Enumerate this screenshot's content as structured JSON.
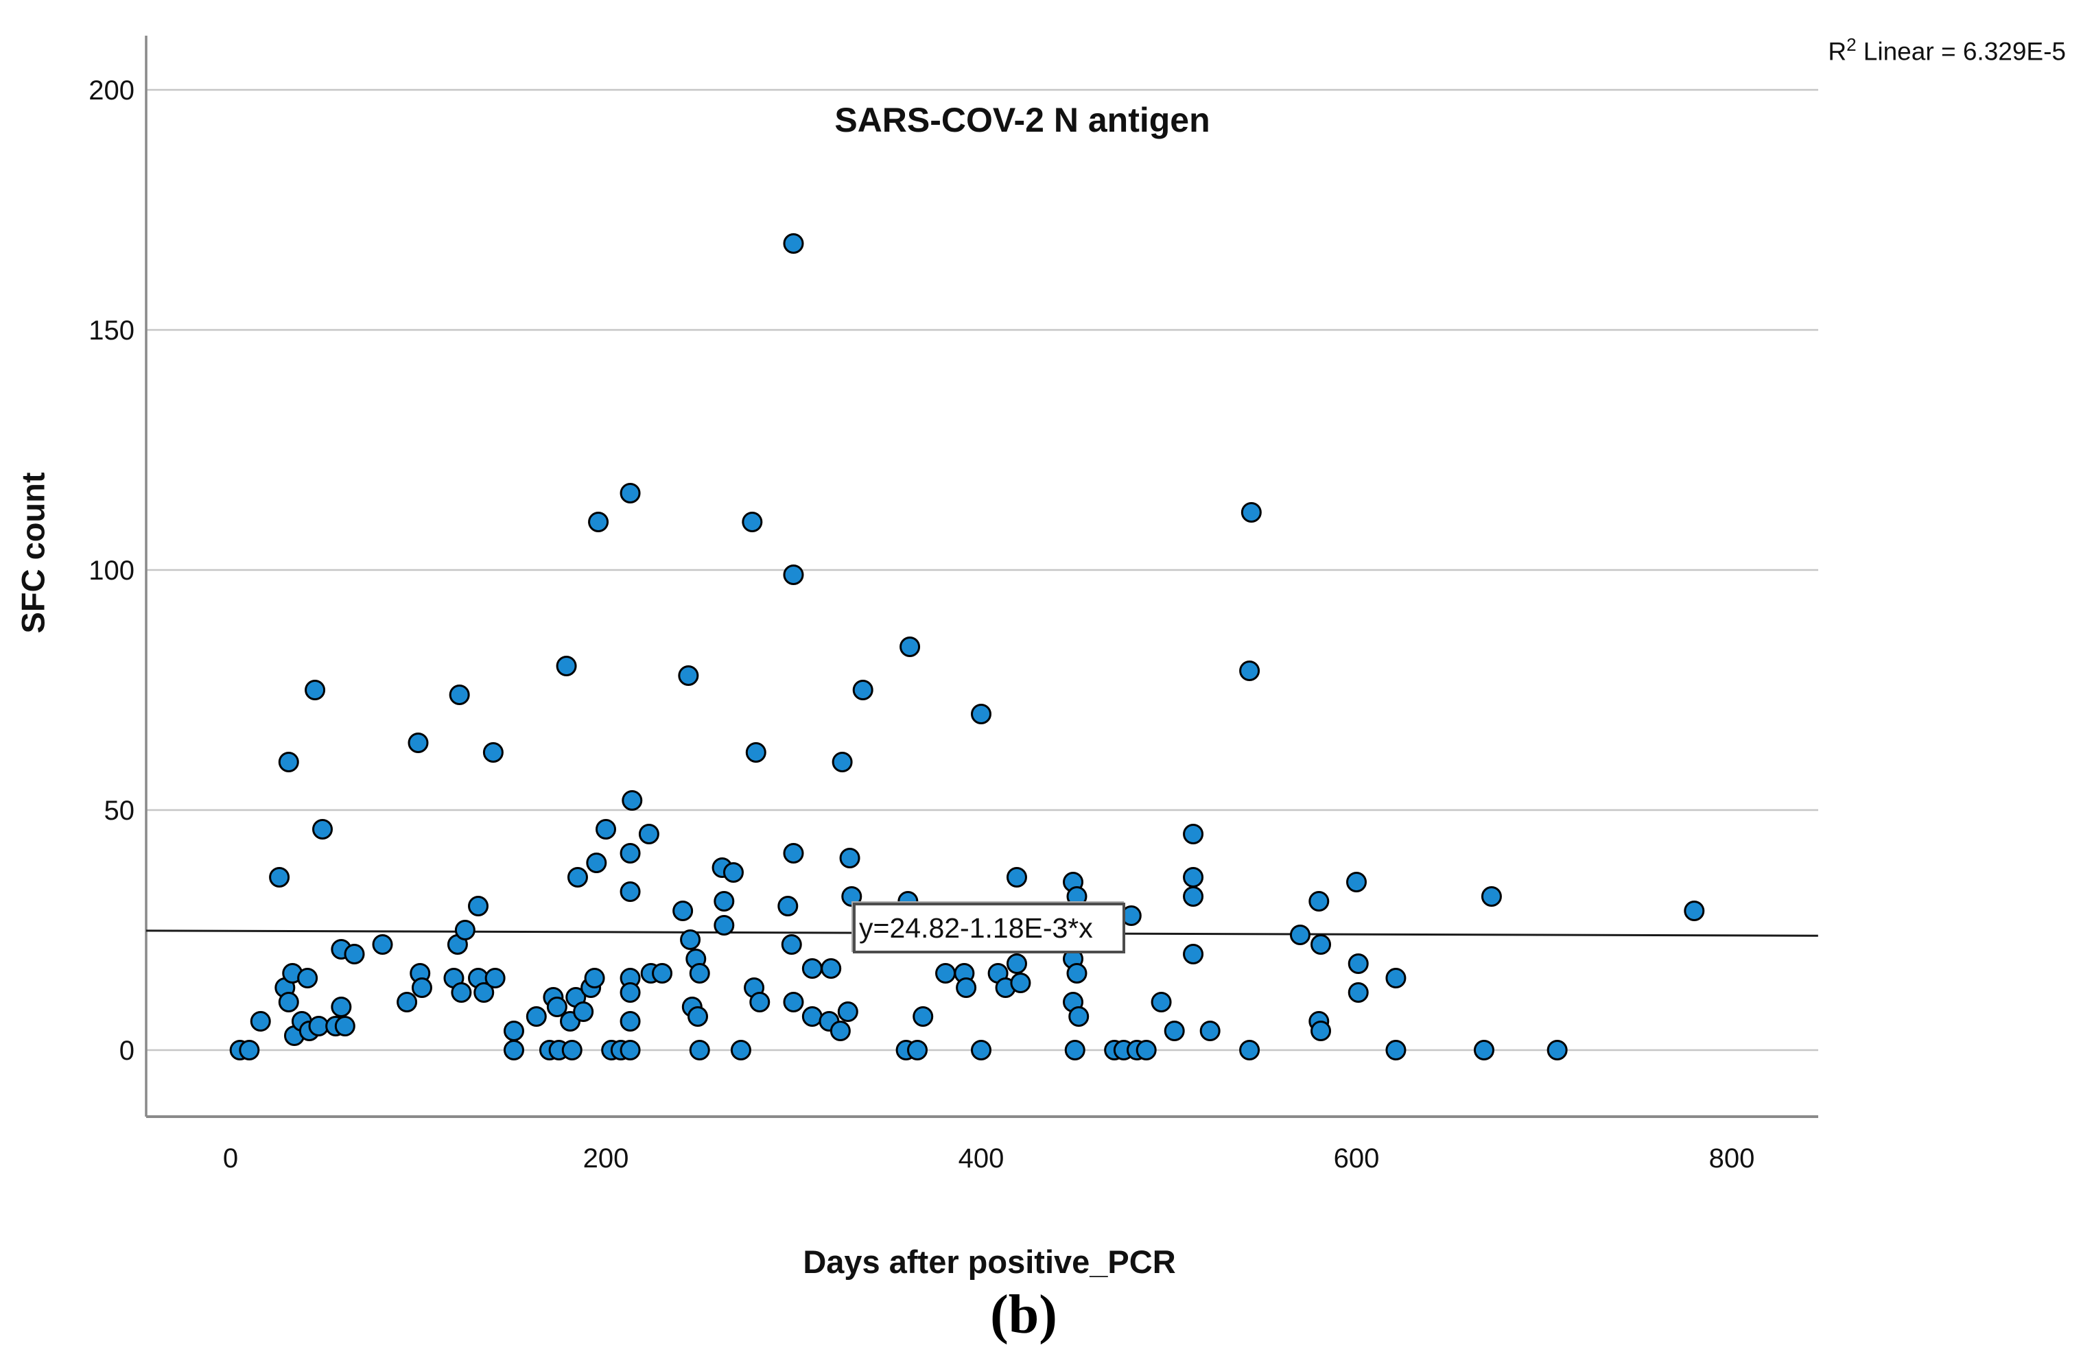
{
  "figure": {
    "panel_label": "(b)",
    "r_squared": {
      "base": "R",
      "sup": "2",
      "rest": " Linear = 6.329E-5"
    }
  },
  "colors": {
    "point_fill": "#1b8ad3",
    "point_stroke": "#000000",
    "gridline": "#c6c6c6",
    "axis": "#8a8a8a",
    "regression_line": "#1a1a1a",
    "text": "#111111"
  },
  "chart_data": {
    "type": "scatter",
    "title": "SARS-COV-2 N antigen",
    "xlabel": "Days after positive_PCR",
    "ylabel": "SFC count",
    "xlim": [
      -45,
      846
    ],
    "ylim": [
      -14,
      211
    ],
    "xticks": [
      0,
      200,
      400,
      600,
      800
    ],
    "yticks": [
      0,
      50,
      100,
      150,
      200
    ],
    "grid": "horizontal-only",
    "legend": "none",
    "regression": {
      "equation_label": "y=24.82-1.18E-3*x",
      "intercept": 24.82,
      "slope": -0.00118,
      "r2_text": "6.329E-5"
    },
    "points": [
      [
        5,
        0
      ],
      [
        10,
        0
      ],
      [
        16,
        6
      ],
      [
        26,
        36
      ],
      [
        29,
        13
      ],
      [
        31,
        60
      ],
      [
        31,
        10
      ],
      [
        33,
        16
      ],
      [
        34,
        3
      ],
      [
        38,
        6
      ],
      [
        41,
        15
      ],
      [
        42,
        4
      ],
      [
        45,
        75
      ],
      [
        47,
        5
      ],
      [
        49,
        46
      ],
      [
        56,
        5
      ],
      [
        59,
        21
      ],
      [
        59,
        9
      ],
      [
        61,
        5
      ],
      [
        66,
        20
      ],
      [
        81,
        22
      ],
      [
        94,
        10
      ],
      [
        100,
        64
      ],
      [
        101,
        16
      ],
      [
        102,
        13
      ],
      [
        119,
        15
      ],
      [
        121,
        22
      ],
      [
        122,
        74
      ],
      [
        123,
        12
      ],
      [
        125,
        25
      ],
      [
        132,
        30
      ],
      [
        132,
        15
      ],
      [
        135,
        12
      ],
      [
        140,
        62
      ],
      [
        141,
        15
      ],
      [
        151,
        4
      ],
      [
        151,
        0
      ],
      [
        163,
        7
      ],
      [
        170,
        0
      ],
      [
        172,
        11
      ],
      [
        174,
        9
      ],
      [
        175,
        0
      ],
      [
        179,
        80
      ],
      [
        181,
        6
      ],
      [
        182,
        0
      ],
      [
        184,
        11
      ],
      [
        185,
        36
      ],
      [
        188,
        8
      ],
      [
        192,
        13
      ],
      [
        194,
        15
      ],
      [
        195,
        39
      ],
      [
        196,
        110
      ],
      [
        200,
        46
      ],
      [
        203,
        0
      ],
      [
        208,
        0
      ],
      [
        213,
        116
      ],
      [
        213,
        41
      ],
      [
        213,
        33
      ],
      [
        213,
        15
      ],
      [
        213,
        12
      ],
      [
        213,
        6
      ],
      [
        213,
        0
      ],
      [
        214,
        52
      ],
      [
        223,
        45
      ],
      [
        224,
        16
      ],
      [
        230,
        16
      ],
      [
        241,
        29
      ],
      [
        244,
        78
      ],
      [
        245,
        23
      ],
      [
        248,
        19
      ],
      [
        250,
        16
      ],
      [
        246,
        9
      ],
      [
        249,
        7
      ],
      [
        250,
        0
      ],
      [
        262,
        38
      ],
      [
        263,
        31
      ],
      [
        263,
        26
      ],
      [
        268,
        37
      ],
      [
        272,
        0
      ],
      [
        278,
        110
      ],
      [
        279,
        13
      ],
      [
        280,
        62
      ],
      [
        282,
        10
      ],
      [
        297,
        30
      ],
      [
        299,
        22
      ],
      [
        300,
        168
      ],
      [
        300,
        99
      ],
      [
        300,
        41
      ],
      [
        300,
        10
      ],
      [
        310,
        17
      ],
      [
        310,
        7
      ],
      [
        319,
        6
      ],
      [
        320,
        17
      ],
      [
        325,
        4
      ],
      [
        326,
        60
      ],
      [
        329,
        8
      ],
      [
        330,
        40
      ],
      [
        331,
        32
      ],
      [
        337,
        75
      ],
      [
        360,
        0
      ],
      [
        361,
        31
      ],
      [
        362,
        84
      ],
      [
        366,
        0
      ],
      [
        369,
        7
      ],
      [
        381,
        16
      ],
      [
        391,
        16
      ],
      [
        392,
        13
      ],
      [
        400,
        70
      ],
      [
        400,
        0
      ],
      [
        409,
        16
      ],
      [
        413,
        13
      ],
      [
        419,
        36
      ],
      [
        419,
        18
      ],
      [
        421,
        14
      ],
      [
        449,
        35
      ],
      [
        451,
        32
      ],
      [
        449,
        19
      ],
      [
        451,
        16
      ],
      [
        449,
        10
      ],
      [
        450,
        0
      ],
      [
        452,
        7
      ],
      [
        471,
        0
      ],
      [
        476,
        0
      ],
      [
        480,
        28
      ],
      [
        483,
        0
      ],
      [
        488,
        0
      ],
      [
        496,
        10
      ],
      [
        503,
        4
      ],
      [
        513,
        45
      ],
      [
        513,
        36
      ],
      [
        513,
        32
      ],
      [
        513,
        20
      ],
      [
        522,
        4
      ],
      [
        543,
        79
      ],
      [
        543,
        0
      ],
      [
        544,
        112
      ],
      [
        570,
        24
      ],
      [
        580,
        31
      ],
      [
        580,
        6
      ],
      [
        581,
        22
      ],
      [
        581,
        4
      ],
      [
        600,
        35
      ],
      [
        601,
        18
      ],
      [
        601,
        12
      ],
      [
        621,
        15
      ],
      [
        621,
        0
      ],
      [
        668,
        0
      ],
      [
        672,
        32
      ],
      [
        707,
        0
      ],
      [
        780,
        29
      ]
    ]
  }
}
